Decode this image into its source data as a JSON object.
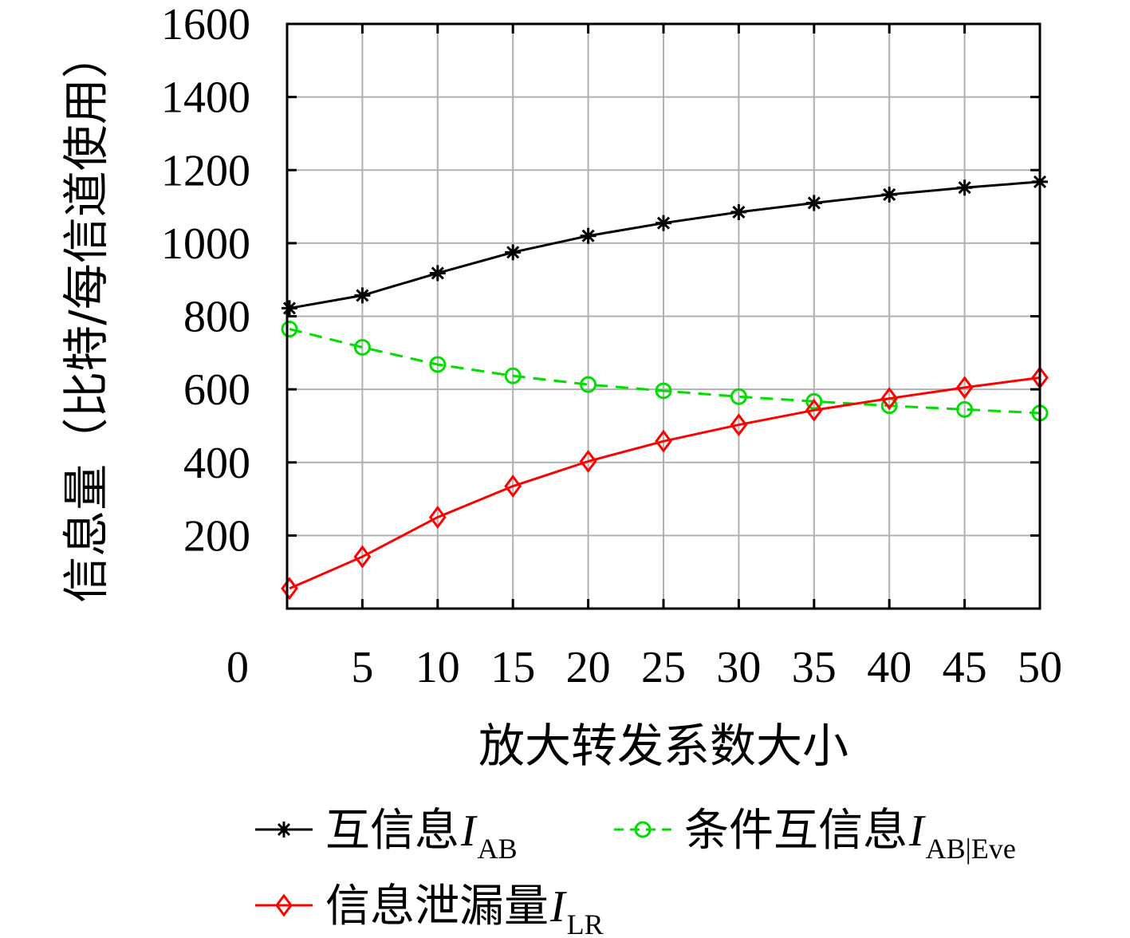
{
  "chart_data": {
    "type": "line",
    "xlabel": "放大转发系数大小",
    "ylabel": "信息量（比特/每信道使用）",
    "xlim": [
      0,
      50
    ],
    "ylim": [
      0,
      1600
    ],
    "x_ticks": [
      "0",
      "5",
      "10",
      "15",
      "20",
      "25",
      "30",
      "35",
      "40",
      "45",
      "50"
    ],
    "y_ticks": [
      "200",
      "400",
      "600",
      "800",
      "1000",
      "1200",
      "1400",
      "1600"
    ],
    "grid": true,
    "legend_position": "bottom",
    "x": [
      0,
      5,
      10,
      15,
      20,
      25,
      30,
      35,
      40,
      45,
      50
    ],
    "series": [
      {
        "name": "互信息",
        "symbol": "I",
        "subscript": "AB",
        "color": "#000000",
        "marker": "star",
        "dash": "solid",
        "values": [
          822,
          857,
          918,
          975,
          1020,
          1055,
          1085,
          1110,
          1133,
          1152,
          1168
        ]
      },
      {
        "name": "条件互信息",
        "symbol": "I",
        "subscript": "AB|Eve",
        "color": "#00dd00",
        "marker": "circle",
        "dash": "dashed",
        "values": [
          765,
          715,
          668,
          637,
          613,
          596,
          580,
          567,
          555,
          545,
          535
        ]
      },
      {
        "name": "信息泄漏量",
        "symbol": "I",
        "subscript": "LR",
        "color": "#ff0000",
        "marker": "diamond",
        "dash": "solid",
        "values": [
          55,
          142,
          250,
          335,
          403,
          458,
          503,
          543,
          575,
          605,
          632
        ]
      }
    ]
  }
}
